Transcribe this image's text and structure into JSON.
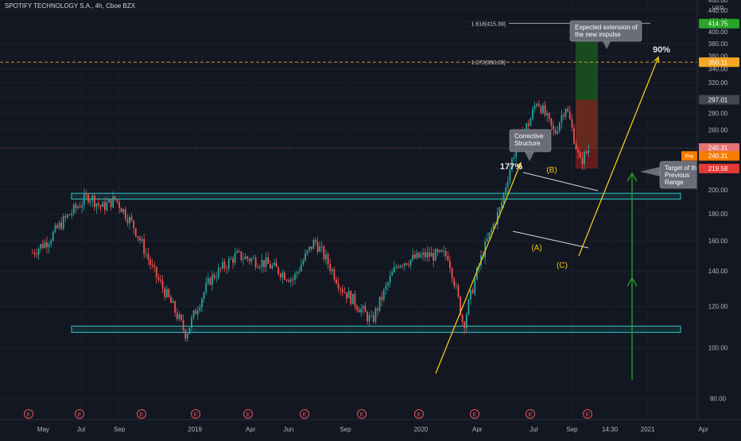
{
  "header": {
    "title": "SPOTIFY TECHNOLOGY S.A., 4h, Cboe BZX"
  },
  "colors": {
    "background": "#131722",
    "axis_text": "#b2b5be",
    "candle_up": "#26a69a",
    "candle_down": "#ef5350",
    "box_outline": "#2ec4c4",
    "yellow": "#f5c518",
    "green": "#26a626",
    "target_box": "#1b5e20",
    "stop_box": "#7f1d1d",
    "gold_dash": "#f5a623"
  },
  "chart_data": {
    "type": "candlestick",
    "title": "SPOTIFY TECHNOLOGY S.A., 4h, Cboe BZX",
    "ylim": [
      73,
      460
    ],
    "y_scale": "log",
    "y_ticks": [
      80,
      100,
      120,
      140,
      160,
      180,
      200,
      220,
      240,
      260,
      280,
      300,
      320,
      340,
      360,
      380,
      400,
      420,
      440,
      460
    ],
    "y_top_unit": "USD",
    "x_tick_labels": [
      "May",
      "Jul",
      "Sep",
      "2019",
      "Apr",
      "Jun",
      "Sep",
      "2020",
      "Apr",
      "Jul",
      "Sep",
      "14:30",
      "2021",
      "Apr"
    ],
    "earnings_marker_label": "E",
    "earnings_marker_count": 12,
    "price_path_anchors": [
      {
        "date": "2018-04-20",
        "price": 152
      },
      {
        "date": "2018-05-15",
        "price": 160
      },
      {
        "date": "2018-06-10",
        "price": 175
      },
      {
        "date": "2018-07-20",
        "price": 195
      },
      {
        "date": "2018-08-10",
        "price": 185
      },
      {
        "date": "2018-09-01",
        "price": 192
      },
      {
        "date": "2018-10-01",
        "price": 170
      },
      {
        "date": "2018-11-01",
        "price": 140
      },
      {
        "date": "2018-12-24",
        "price": 106
      },
      {
        "date": "2019-02-01",
        "price": 135
      },
      {
        "date": "2019-03-15",
        "price": 150
      },
      {
        "date": "2019-05-01",
        "price": 145
      },
      {
        "date": "2019-06-15",
        "price": 135
      },
      {
        "date": "2019-07-20",
        "price": 160
      },
      {
        "date": "2019-09-01",
        "price": 130
      },
      {
        "date": "2019-10-20",
        "price": 112
      },
      {
        "date": "2019-12-01",
        "price": 145
      },
      {
        "date": "2020-01-15",
        "price": 150
      },
      {
        "date": "2020-02-20",
        "price": 150
      },
      {
        "date": "2020-03-16",
        "price": 110
      },
      {
        "date": "2020-04-15",
        "price": 150
      },
      {
        "date": "2020-05-15",
        "price": 185
      },
      {
        "date": "2020-06-10",
        "price": 245
      },
      {
        "date": "2020-07-01",
        "price": 270
      },
      {
        "date": "2020-07-13",
        "price": 297
      },
      {
        "date": "2020-08-10",
        "price": 255
      },
      {
        "date": "2020-08-28",
        "price": 290
      },
      {
        "date": "2020-09-20",
        "price": 225
      },
      {
        "date": "2020-10-05",
        "price": 240
      }
    ],
    "support_box": {
      "low": 107,
      "high": 110
    },
    "resistance_box": {
      "low": 192,
      "high": 197
    },
    "horizontal_levels": [
      {
        "label": "1.618(415.39)",
        "price": 415.39
      },
      {
        "label": "1.272(350.20)",
        "price": 350.2
      }
    ],
    "price_labels": [
      {
        "text": "414.75",
        "price": 414.75,
        "role": "target"
      },
      {
        "text": "350.11",
        "price": 350.11,
        "role": "fib"
      },
      {
        "text": "297.01",
        "price": 297.01,
        "role": "previous-range-target"
      },
      {
        "text": "240.31",
        "price": 240.31,
        "role": "last"
      },
      {
        "text": "240.31",
        "price": 240.31,
        "role": "pre-market",
        "tag": "Pre"
      },
      {
        "text": "219.58",
        "price": 219.58,
        "role": "stop"
      }
    ],
    "last_price": 240.31,
    "annotations": {
      "move_percent_1": "177%",
      "move_percent_2": "90%",
      "wave_a": "(A)",
      "wave_b": "(B)",
      "wave_c": "(C)",
      "corrective_note": "Corrective\nStructure",
      "extension_note": "Expected extension of\nthe new impulse",
      "target_note": "Target of the\nPrevious\nRange"
    },
    "position": {
      "entry": 240.31,
      "target": 414.75,
      "stop": 219.58
    }
  }
}
